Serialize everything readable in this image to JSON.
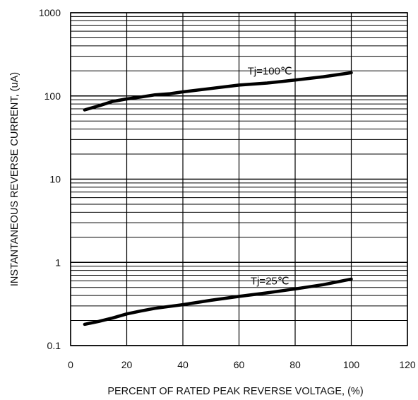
{
  "chart_data": {
    "type": "line",
    "xlabel": "PERCENT OF RATED PEAK REVERSE VOLTAGE,  (%)",
    "ylabel": "INSTANTANEOUS REVERSE CURRENT, (uA)",
    "xlim": [
      0,
      120
    ],
    "ylim": [
      0.1,
      1000
    ],
    "yscale": "log",
    "grid": true,
    "x_ticks": [
      "0",
      "20",
      "40",
      "60",
      "80",
      "100",
      "120"
    ],
    "y_ticks": [
      "0.1",
      "1",
      "10",
      "100",
      "1000"
    ],
    "series": [
      {
        "name": "Tj=100℃",
        "x": [
          5,
          10,
          15,
          20,
          25,
          30,
          35,
          40,
          50,
          60,
          70,
          80,
          90,
          100
        ],
        "y": [
          68,
          76,
          86,
          92,
          97,
          103,
          106,
          112,
          123,
          135,
          143,
          155,
          170,
          190
        ]
      },
      {
        "name": "Tj=25℃",
        "x": [
          5,
          10,
          15,
          20,
          25,
          30,
          35,
          40,
          50,
          60,
          70,
          80,
          90,
          100
        ],
        "y": [
          0.18,
          0.195,
          0.215,
          0.24,
          0.26,
          0.28,
          0.295,
          0.31,
          0.35,
          0.39,
          0.43,
          0.48,
          0.54,
          0.63
        ]
      }
    ]
  }
}
